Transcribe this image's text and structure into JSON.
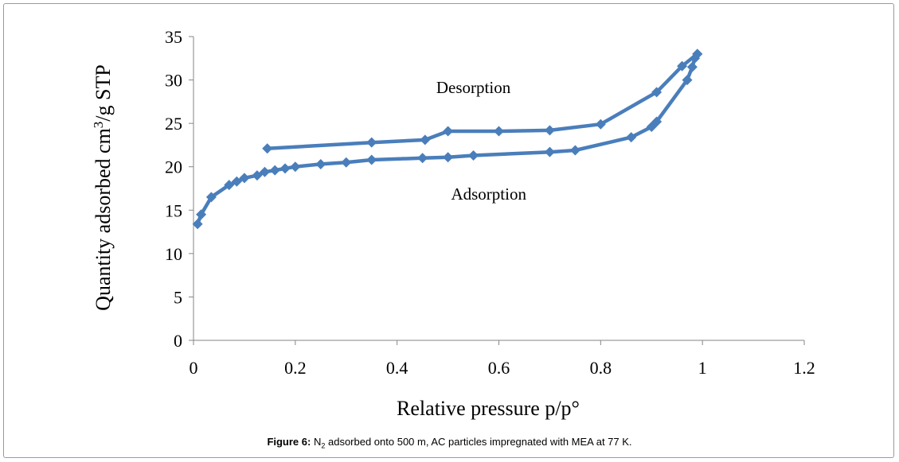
{
  "chart_data": {
    "type": "line",
    "xlabel": "Relative pressure p/p°",
    "ylabel_parts": {
      "before": "Quantity adsorbed cm",
      "sup": "3",
      "after": "/g STP"
    },
    "xlim": [
      0,
      1.2
    ],
    "ylim": [
      0,
      35
    ],
    "x_ticks": [
      0,
      0.2,
      0.4,
      0.6,
      0.8,
      1,
      1.2
    ],
    "y_ticks": [
      0,
      5,
      10,
      15,
      20,
      25,
      30,
      35
    ],
    "color": "#4a7ebb",
    "series": [
      {
        "label": "Adsorption",
        "points": [
          [
            0.008,
            13.4
          ],
          [
            0.015,
            14.5
          ],
          [
            0.035,
            16.5
          ],
          [
            0.07,
            17.9
          ],
          [
            0.085,
            18.3
          ],
          [
            0.1,
            18.7
          ],
          [
            0.125,
            19.0
          ],
          [
            0.14,
            19.4
          ],
          [
            0.16,
            19.6
          ],
          [
            0.18,
            19.8
          ],
          [
            0.2,
            20.0
          ],
          [
            0.25,
            20.3
          ],
          [
            0.3,
            20.5
          ],
          [
            0.35,
            20.8
          ],
          [
            0.45,
            21.0
          ],
          [
            0.5,
            21.1
          ],
          [
            0.55,
            21.3
          ],
          [
            0.7,
            21.7
          ],
          [
            0.75,
            21.9
          ],
          [
            0.86,
            23.4
          ],
          [
            0.9,
            24.6
          ],
          [
            0.91,
            25.2
          ],
          [
            0.97,
            30.0
          ],
          [
            0.98,
            31.5
          ],
          [
            0.985,
            32.5
          ],
          [
            0.99,
            33.0
          ]
        ]
      },
      {
        "label": "Desorption",
        "points": [
          [
            0.99,
            33.0
          ],
          [
            0.96,
            31.6
          ],
          [
            0.91,
            28.6
          ],
          [
            0.8,
            24.9
          ],
          [
            0.7,
            24.2
          ],
          [
            0.6,
            24.1
          ],
          [
            0.5,
            24.1
          ],
          [
            0.455,
            23.1
          ],
          [
            0.35,
            22.8
          ],
          [
            0.145,
            22.1
          ]
        ]
      }
    ],
    "annotations": [
      {
        "text": "Desorption",
        "x": 0.55,
        "y": 28.5
      },
      {
        "text": "Adsorption",
        "x": 0.58,
        "y": 16.2
      }
    ]
  },
  "caption": {
    "label": "Figure 6:",
    "text_n": "N",
    "text_sub": "2",
    "text_rest": " adsorbed onto 500 m, AC particles impregnated with MEA at 77 K."
  }
}
